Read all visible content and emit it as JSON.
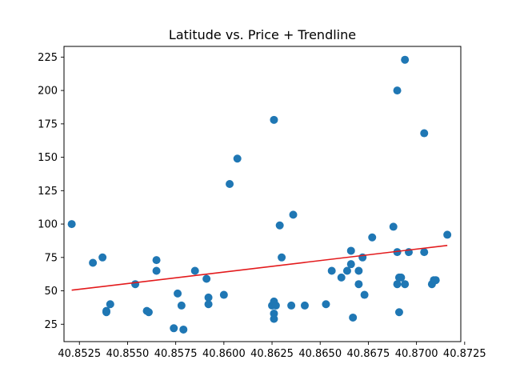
{
  "chart_data": {
    "type": "scatter",
    "title": "Latitude vs. Price + Trendline",
    "xlabel": "",
    "ylabel": "",
    "xlim": [
      40.8517,
      40.8723
    ],
    "ylim": [
      12,
      233
    ],
    "xticks": [
      40.8525,
      40.855,
      40.8575,
      40.86,
      40.8625,
      40.865,
      40.8675,
      40.87,
      40.8725
    ],
    "xtick_labels": [
      "40.8525",
      "40.8550",
      "40.8575",
      "40.8600",
      "40.8625",
      "40.8650",
      "40.8675",
      "40.8700",
      "40.8725"
    ],
    "yticks": [
      25,
      50,
      75,
      100,
      125,
      150,
      175,
      200,
      225
    ],
    "ytick_labels": [
      "25",
      "50",
      "75",
      "100",
      "125",
      "150",
      "175",
      "200",
      "225"
    ],
    "grid": false,
    "series": [
      {
        "kind": "scatter",
        "color": "#1f77b4",
        "points": [
          [
            40.8521,
            100
          ],
          [
            40.8532,
            71
          ],
          [
            40.8537,
            75
          ],
          [
            40.8539,
            35
          ],
          [
            40.8539,
            34
          ],
          [
            40.8541,
            40
          ],
          [
            40.8554,
            55
          ],
          [
            40.856,
            35
          ],
          [
            40.8561,
            34
          ],
          [
            40.8565,
            73
          ],
          [
            40.8565,
            65
          ],
          [
            40.8574,
            22
          ],
          [
            40.8576,
            48
          ],
          [
            40.8578,
            39
          ],
          [
            40.8579,
            21
          ],
          [
            40.8585,
            65
          ],
          [
            40.8591,
            59
          ],
          [
            40.8592,
            45
          ],
          [
            40.8592,
            40
          ],
          [
            40.86,
            47
          ],
          [
            40.8603,
            130
          ],
          [
            40.8607,
            149
          ],
          [
            40.8625,
            39
          ],
          [
            40.8626,
            42
          ],
          [
            40.8626,
            178
          ],
          [
            40.8626,
            33
          ],
          [
            40.8626,
            29
          ],
          [
            40.8627,
            39
          ],
          [
            40.8629,
            99
          ],
          [
            40.863,
            75
          ],
          [
            40.8635,
            39
          ],
          [
            40.8636,
            107
          ],
          [
            40.8642,
            39
          ],
          [
            40.8653,
            40
          ],
          [
            40.8656,
            65
          ],
          [
            40.8661,
            60
          ],
          [
            40.8664,
            65
          ],
          [
            40.8666,
            80
          ],
          [
            40.8666,
            70
          ],
          [
            40.8667,
            30
          ],
          [
            40.867,
            55
          ],
          [
            40.867,
            65
          ],
          [
            40.8672,
            75
          ],
          [
            40.8673,
            47
          ],
          [
            40.8677,
            90
          ],
          [
            40.8688,
            98
          ],
          [
            40.869,
            200
          ],
          [
            40.869,
            55
          ],
          [
            40.869,
            79
          ],
          [
            40.8691,
            34
          ],
          [
            40.8691,
            60
          ],
          [
            40.8692,
            60
          ],
          [
            40.8694,
            55
          ],
          [
            40.8694,
            223
          ],
          [
            40.8696,
            79
          ],
          [
            40.8704,
            168
          ],
          [
            40.8704,
            79
          ],
          [
            40.8708,
            55
          ],
          [
            40.8709,
            58
          ],
          [
            40.871,
            58
          ],
          [
            40.8716,
            92
          ]
        ]
      },
      {
        "kind": "line",
        "color": "#e31a1c",
        "x": [
          40.8521,
          40.8716
        ],
        "y": [
          50.5,
          84
        ]
      }
    ]
  }
}
